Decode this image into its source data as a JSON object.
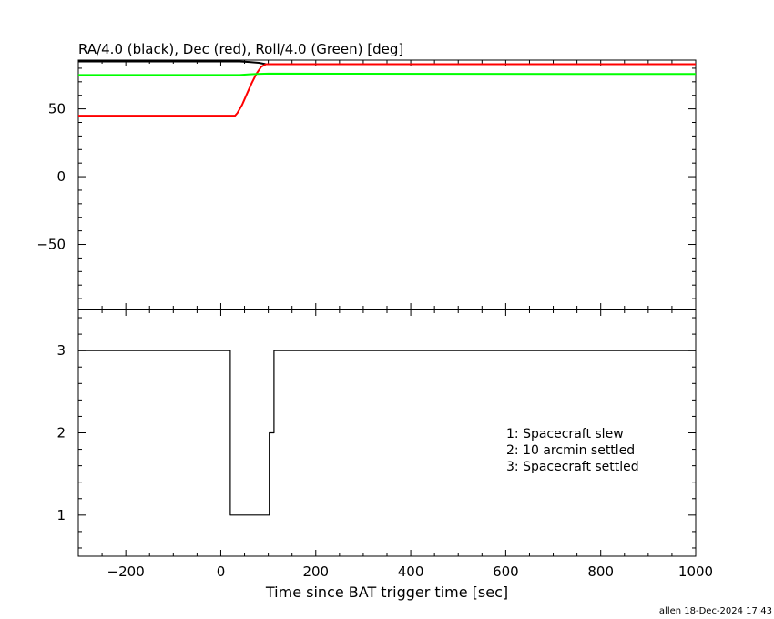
{
  "top_title": "RA/4.0 (black), Dec (red), Roll/4.0 (Green) [deg]",
  "footer": "allen 18-Dec-2024 17:43",
  "colors": {
    "axis": "#000000",
    "ra": "#000000",
    "dec": "#ff0000",
    "roll": "#00ff00",
    "mode": "#000000"
  },
  "chart_data": [
    {
      "type": "line",
      "title": "RA/4.0 (black), Dec (red), Roll/4.0 (Green) [deg]",
      "xlim": [
        -300,
        1000
      ],
      "ylim": [
        -98,
        86
      ],
      "x_ticks": [
        -200,
        0,
        200,
        400,
        600,
        800,
        1000
      ],
      "y_ticks": [
        -50,
        0,
        50
      ],
      "series": [
        {
          "name": "RA/4.0",
          "color": "#000000",
          "x": [
            -300,
            0,
            40,
            60,
            80,
            95,
            100,
            1000
          ],
          "y": [
            85,
            85,
            85,
            84.6,
            84,
            83,
            83,
            83
          ]
        },
        {
          "name": "Dec",
          "color": "#ff0000",
          "x": [
            -300,
            0,
            30,
            35,
            45,
            55,
            65,
            75,
            85,
            95,
            100,
            1000
          ],
          "y": [
            45,
            45,
            45,
            47,
            53,
            61,
            69,
            76,
            81,
            83,
            83,
            83
          ]
        },
        {
          "name": "Roll/4.0",
          "color": "#00ff00",
          "x": [
            -300,
            40,
            60,
            75,
            100,
            1000
          ],
          "y": [
            75,
            75,
            75.5,
            75.8,
            76,
            75.7
          ]
        }
      ]
    },
    {
      "type": "line",
      "xlabel": "Time since BAT trigger time [sec]",
      "xlim": [
        -300,
        1000
      ],
      "ylim": [
        0.5,
        3.5
      ],
      "x_ticks": [
        -200,
        0,
        200,
        400,
        600,
        800,
        1000
      ],
      "y_ticks": [
        1,
        2,
        3
      ],
      "annotations": [
        "1: Spacecraft slew",
        "2: 10 arcmin settled",
        "3: Spacecraft settled"
      ],
      "series": [
        {
          "color": "#000000",
          "step": true,
          "x": [
            -300,
            20,
            20,
            102,
            102,
            112,
            112,
            1000
          ],
          "y": [
            3,
            3,
            1,
            1,
            2,
            2,
            3,
            3
          ]
        }
      ]
    }
  ]
}
